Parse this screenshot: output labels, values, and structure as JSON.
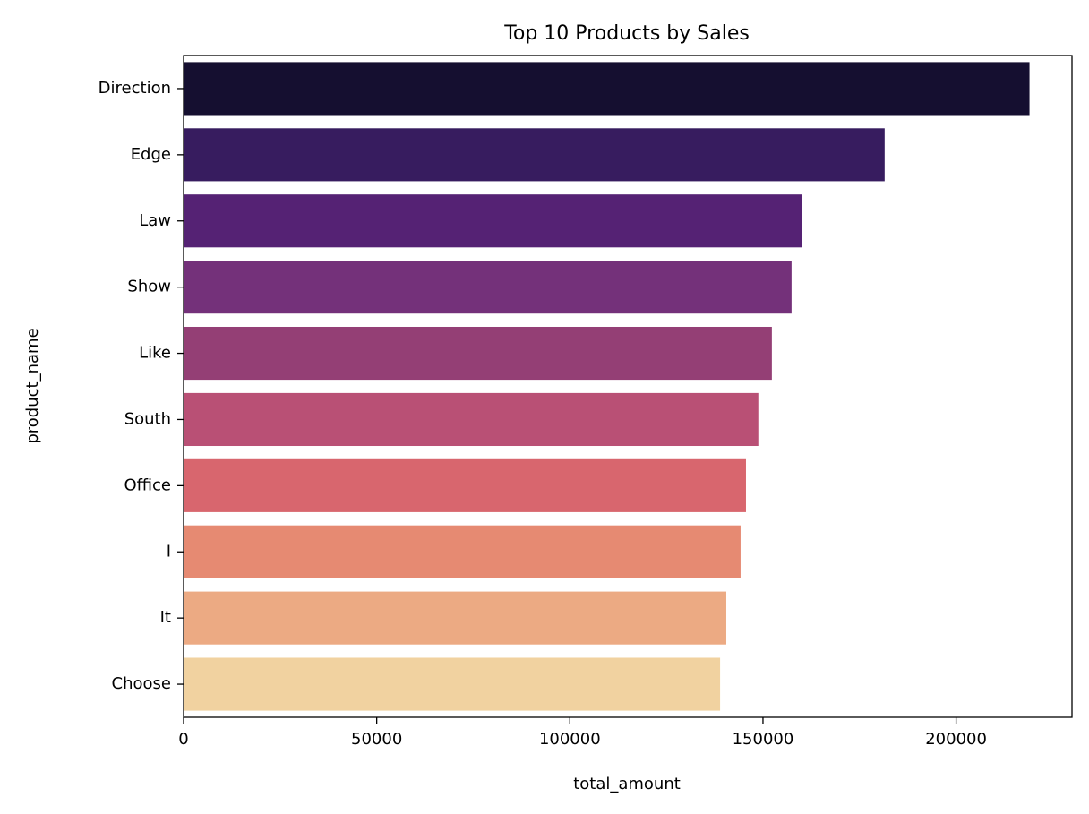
{
  "chart_data": {
    "type": "bar",
    "orientation": "horizontal",
    "title": "Top 10 Products by Sales",
    "xlabel": "total_amount",
    "ylabel": "product_name",
    "xlim": [
      0,
      230000
    ],
    "xticks": [
      0,
      50000,
      100000,
      150000,
      200000
    ],
    "grid": false,
    "legend": "none",
    "categories": [
      "Direction",
      "Edge",
      "Law",
      "Show",
      "Like",
      "South",
      "Office",
      "I",
      "It",
      "Choose"
    ],
    "values": [
      219000,
      181500,
      160200,
      157400,
      152300,
      148800,
      145600,
      144200,
      140500,
      138900
    ],
    "colors": [
      "#150f30",
      "#371c5f",
      "#552274",
      "#74317a",
      "#943f75",
      "#b95075",
      "#d8666e",
      "#e68a72",
      "#ecaa83",
      "#f1d2a0"
    ]
  }
}
